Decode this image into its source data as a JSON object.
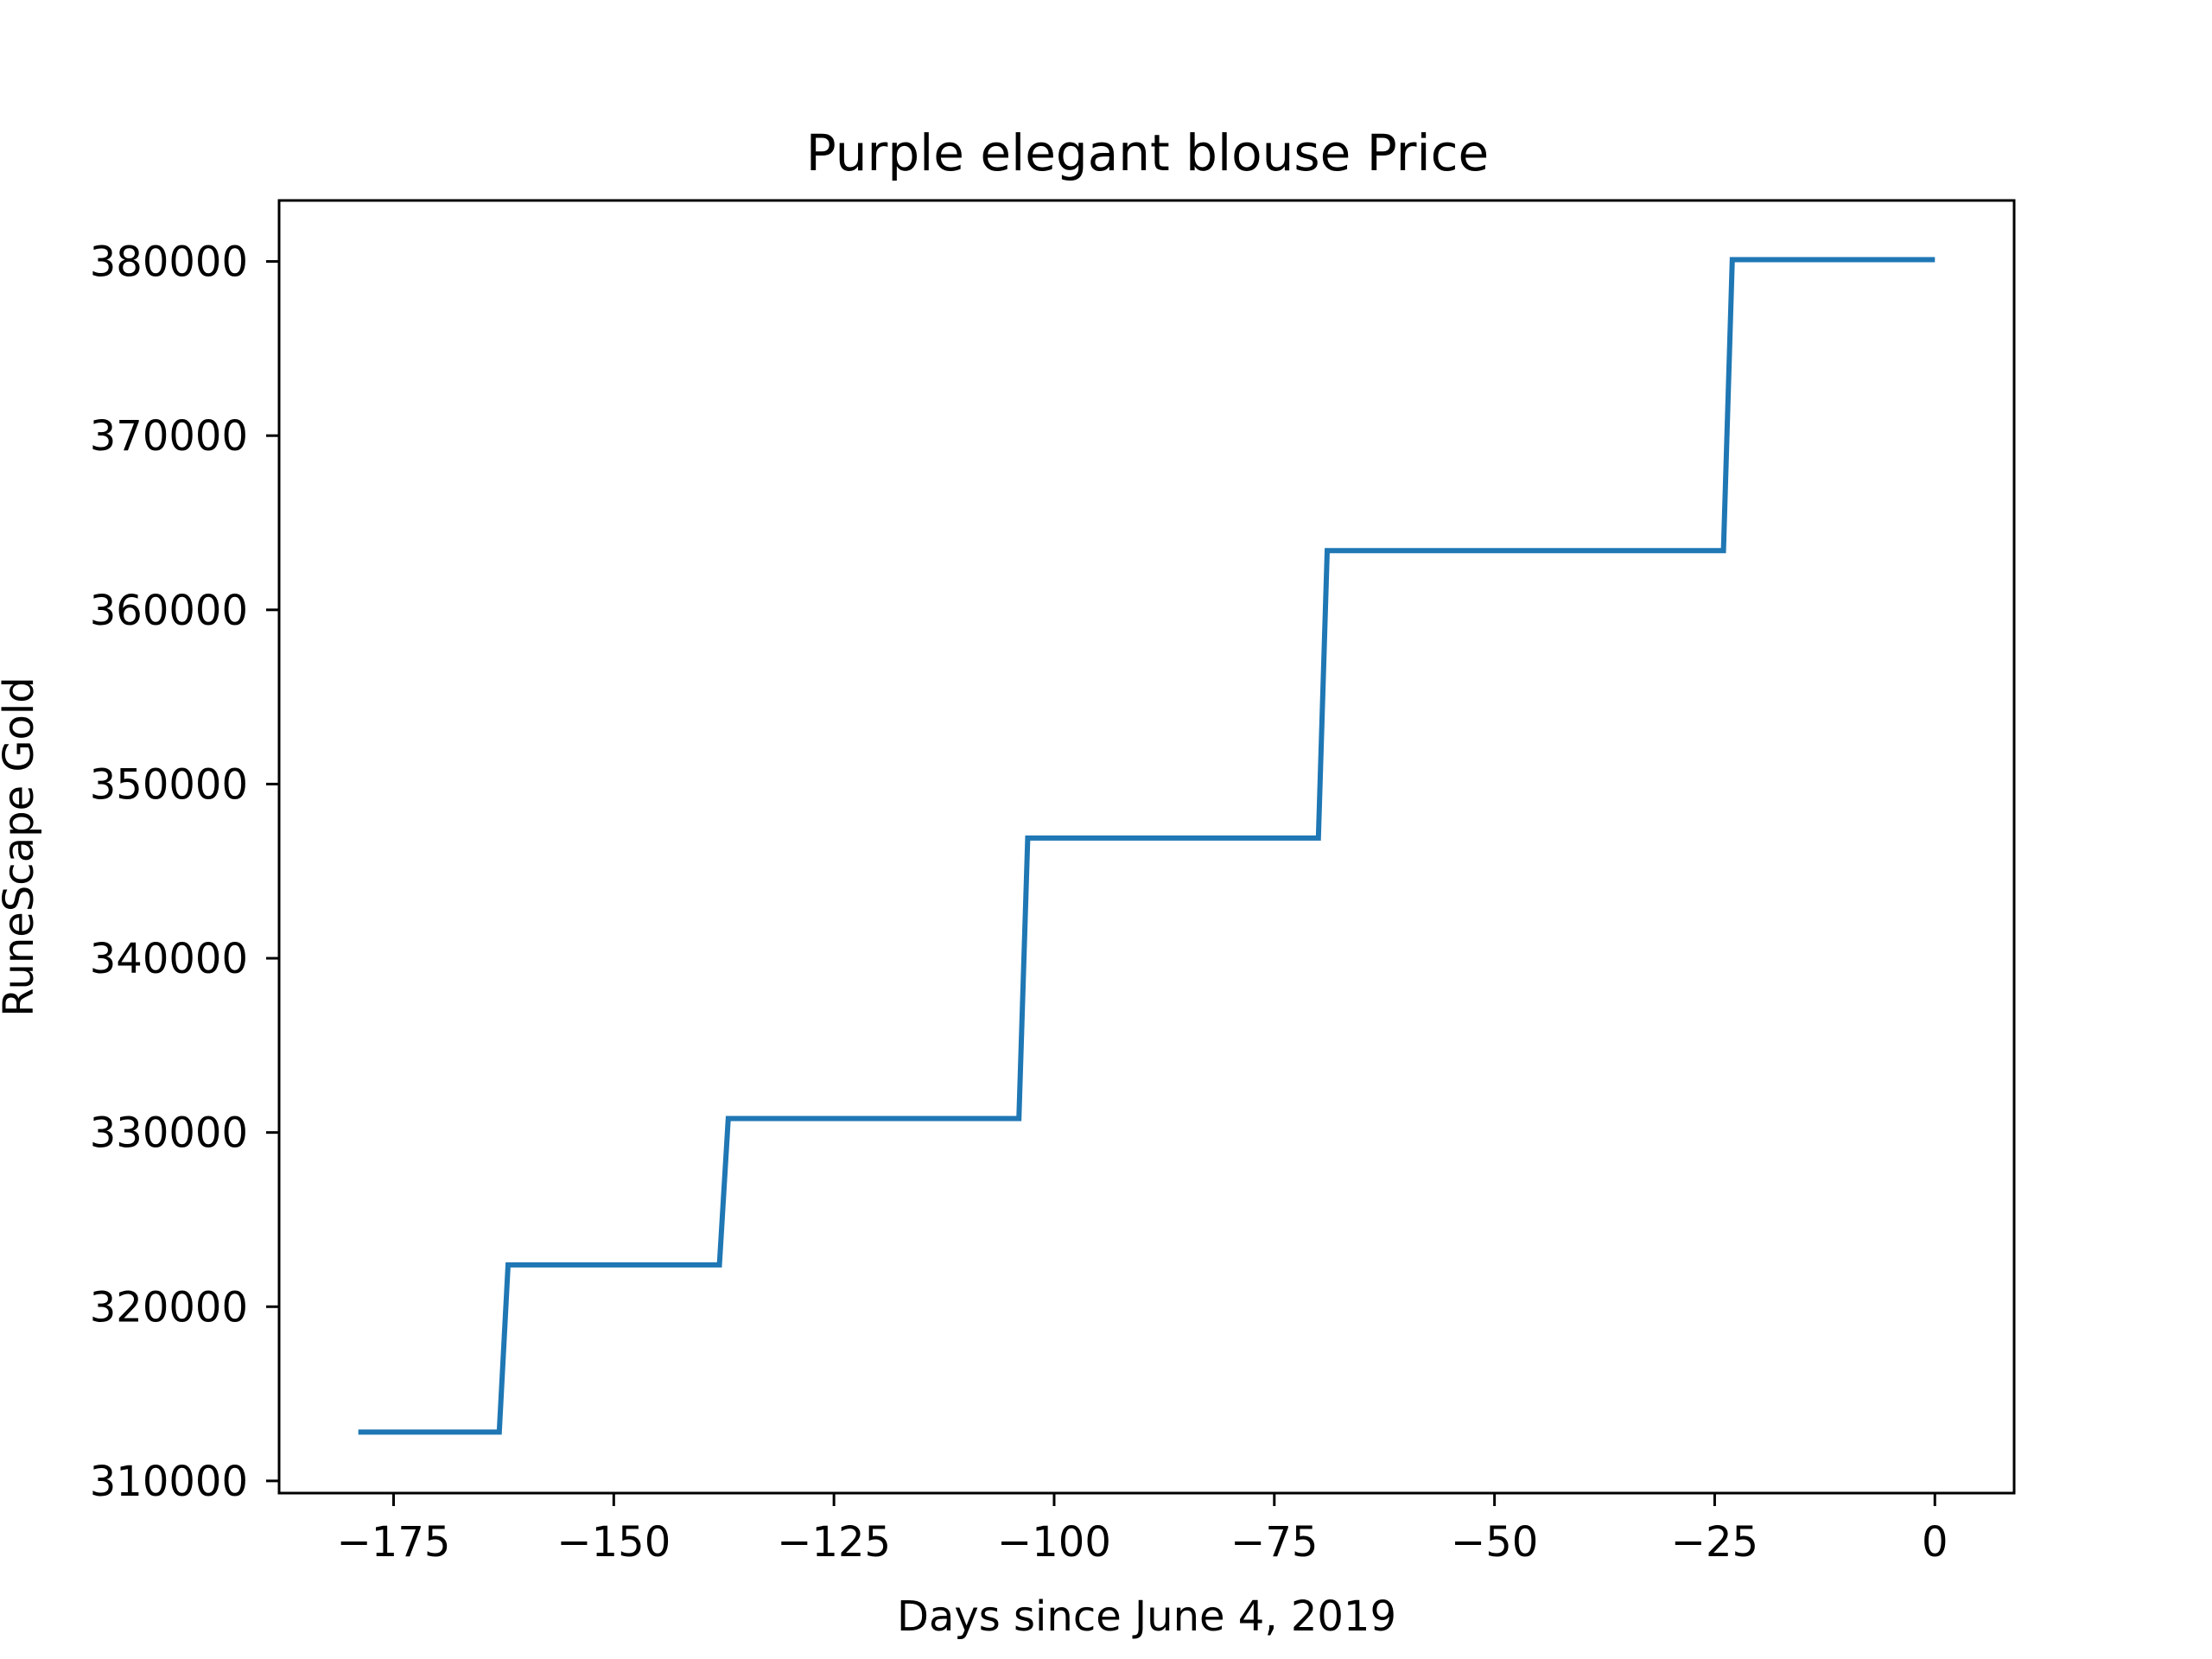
{
  "chart_data": {
    "type": "line",
    "title": "Purple elegant blouse Price",
    "xlabel": "Days since June 4, 2019",
    "ylabel": "RuneScape Gold",
    "xlim": [
      -188,
      9
    ],
    "ylim": [
      309300,
      383500
    ],
    "xticks": [
      -175,
      -150,
      -125,
      -100,
      -75,
      -50,
      -25,
      0
    ],
    "yticks": [
      310000,
      320000,
      330000,
      340000,
      350000,
      360000,
      370000,
      380000
    ],
    "grid": false,
    "series": [
      {
        "color": "#1f77b4",
        "x": [
          -179,
          -163,
          -162,
          -138,
          -137,
          -104,
          -103,
          -70,
          -69,
          -24,
          -23,
          0
        ],
        "y": [
          312800,
          312800,
          322400,
          322400,
          330800,
          330800,
          346900,
          346900,
          363400,
          363400,
          380100,
          380100
        ]
      }
    ]
  }
}
